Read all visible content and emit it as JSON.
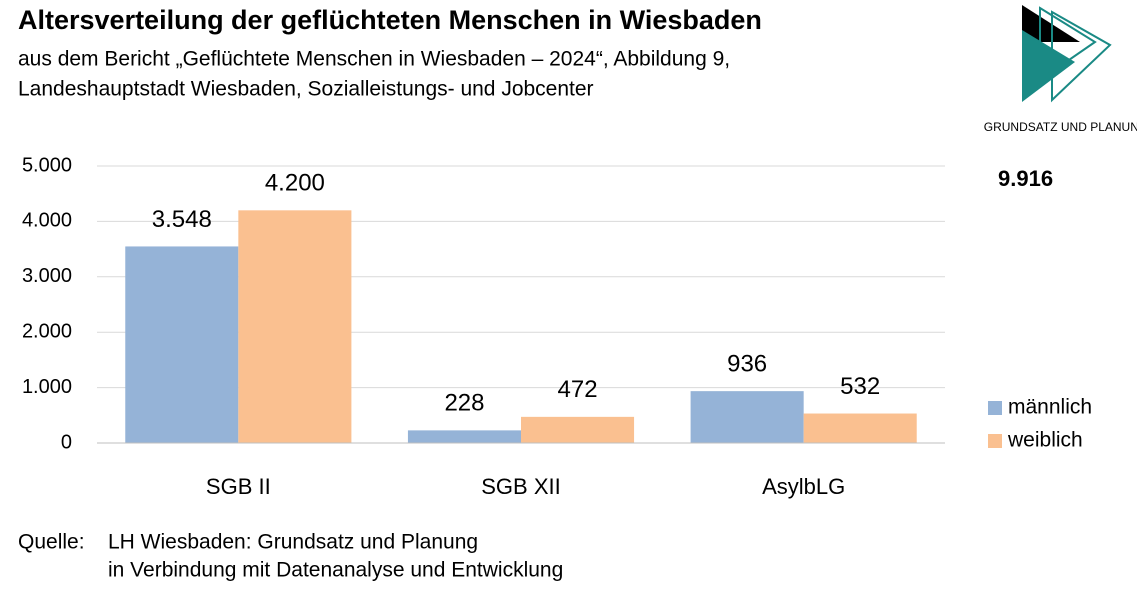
{
  "chart_data": {
    "type": "bar",
    "title": "Altersverteilung der geflüchteten Menschen in Wiesbaden",
    "subtitle": [
      "aus dem Bericht „Geflüchtete Menschen in Wiesbaden – 2024“, Abbildung 9,",
      "Landeshauptstadt Wiesbaden, Sozialleistungs- und Jobcenter"
    ],
    "categories": [
      "SGB II",
      "SGB XII",
      "AsylbLG"
    ],
    "series": [
      {
        "name": "männlich",
        "color": "#95b3d7",
        "values": [
          3548,
          228,
          936
        ],
        "value_labels": [
          "3.548",
          "228",
          "936"
        ]
      },
      {
        "name": "weiblich",
        "color": "#fac090",
        "values": [
          4200,
          472,
          532
        ],
        "value_labels": [
          "4.200",
          "472",
          "532"
        ]
      }
    ],
    "ylim": [
      0,
      5000
    ],
    "yticks": [
      0,
      {
        "value": 1000,
        "label": "1.000"
      },
      {
        "value": 2000,
        "label": "2.000"
      },
      {
        "value": 3000,
        "label": "3.000"
      },
      {
        "value": 4000,
        "label": "4.000"
      },
      {
        "value": 5000,
        "label": "5.000"
      }
    ],
    "grid": true,
    "legend": "right",
    "annotation": "9.916",
    "logo_text": "GRUNDSATZ UND PLANUNG",
    "source": {
      "label": "Quelle:",
      "lines": [
        "LH Wiesbaden: Grundsatz und Planung",
        "in Verbindung mit Datenanalyse und Entwicklung"
      ]
    }
  }
}
